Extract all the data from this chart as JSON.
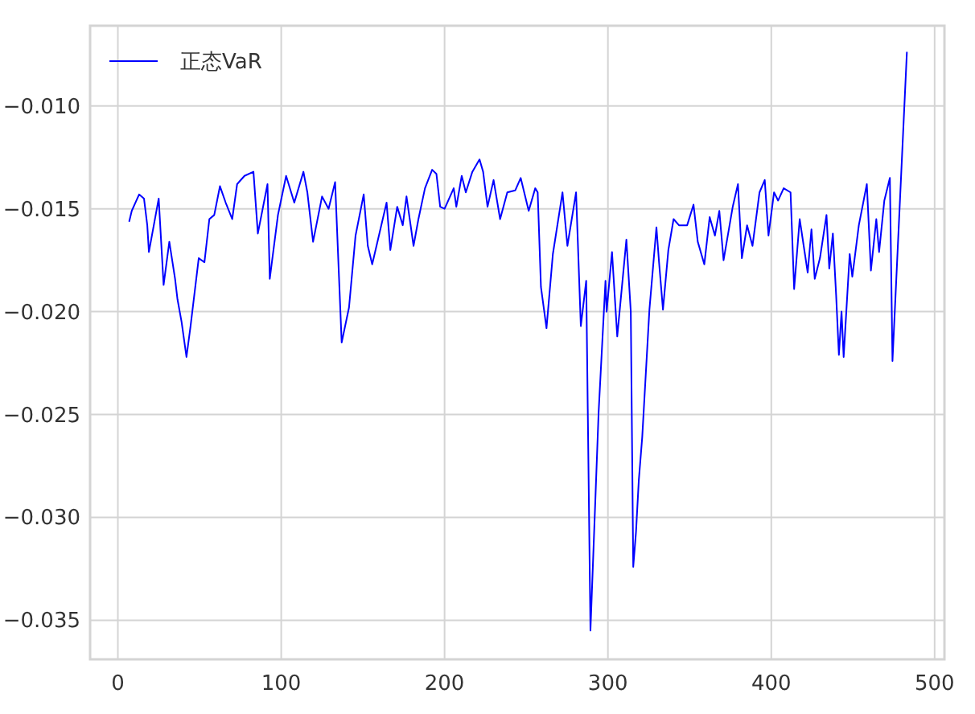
{
  "chart_data": {
    "type": "line",
    "legend": "top left",
    "grid": true,
    "marker": "none",
    "line_style": "solid",
    "xlim": [
      -17,
      506
    ],
    "ylim": [
      -0.0369,
      -0.0061
    ],
    "xticks": [
      0,
      100,
      200,
      300,
      400,
      500
    ],
    "yticks": [
      {
        "value": -0.01,
        "label": "−0.010"
      },
      {
        "value": -0.015,
        "label": "−0.015"
      },
      {
        "value": -0.02,
        "label": "−0.020"
      },
      {
        "value": -0.025,
        "label": "−0.025"
      },
      {
        "value": -0.03,
        "label": "−0.030"
      },
      {
        "value": -0.035,
        "label": "−0.035"
      }
    ],
    "series": [
      {
        "name": "正态VaR",
        "color": "#0000ff",
        "x": [
          7,
          8.5,
          13,
          16,
          18,
          19,
          25,
          28,
          31.5,
          35,
          36.5,
          39,
          42,
          44.5,
          49.5,
          53,
          56,
          59,
          62.5,
          66,
          70,
          73,
          77.5,
          83,
          85.7,
          91.6,
          93,
          98,
          103,
          108,
          113.6,
          116,
          119.5,
          125,
          129,
          133,
          137,
          141.5,
          145.5,
          150.5,
          153,
          155.7,
          164.5,
          166.8,
          171,
          174.4,
          176.7,
          181,
          184,
          188,
          192.4,
          195,
          197.3,
          200,
          205.6,
          207.2,
          210.5,
          213,
          217,
          221.4,
          223.6,
          226.3,
          230,
          234,
          238.4,
          243.3,
          246.6,
          251.5,
          255.5,
          257,
          259,
          262.4,
          266.3,
          272.2,
          275.2,
          280.5,
          283.4,
          286.7,
          289.3,
          294.3,
          298.5,
          299.2,
          302.5,
          305.7,
          311.3,
          314,
          315.5,
          317.2,
          318.9,
          321,
          325.4,
          329.7,
          331.3,
          333.7,
          337,
          340.2,
          343.5,
          348.5,
          352.4,
          355,
          359,
          362.3,
          365.5,
          368.2,
          370.8,
          376.4,
          379.6,
          382,
          385.2,
          388.5,
          392.8,
          396,
          398.3,
          401.7,
          404.2,
          407.6,
          411.8,
          414,
          417.4,
          422.3,
          424.6,
          426.6,
          429.8,
          433.8,
          435.5,
          437.7,
          439.7,
          441.4,
          443,
          444.3,
          448,
          449.6,
          453.6,
          458.5,
          461,
          464.3,
          466,
          469.2,
          472.6,
          474.2,
          483
        ],
        "values": [
          -0.0156,
          -0.0151,
          -0.0143,
          -0.0145,
          -0.0158,
          -0.0171,
          -0.0145,
          -0.0187,
          -0.0166,
          -0.0184,
          -0.0194,
          -0.0205,
          -0.0222,
          -0.0207,
          -0.0174,
          -0.0176,
          -0.0155,
          -0.0153,
          -0.0139,
          -0.0147,
          -0.0155,
          -0.0138,
          -0.0134,
          -0.0132,
          -0.0162,
          -0.0138,
          -0.0184,
          -0.0153,
          -0.0134,
          -0.0147,
          -0.0132,
          -0.0142,
          -0.0166,
          -0.0144,
          -0.015,
          -0.0137,
          -0.0215,
          -0.0198,
          -0.0163,
          -0.0143,
          -0.0168,
          -0.0177,
          -0.0147,
          -0.017,
          -0.0149,
          -0.0158,
          -0.0144,
          -0.0168,
          -0.0155,
          -0.014,
          -0.0131,
          -0.0133,
          -0.0149,
          -0.015,
          -0.014,
          -0.0149,
          -0.0134,
          -0.0142,
          -0.0132,
          -0.0126,
          -0.0132,
          -0.0149,
          -0.0136,
          -0.0155,
          -0.0142,
          -0.0141,
          -0.0135,
          -0.0151,
          -0.014,
          -0.0142,
          -0.0188,
          -0.0208,
          -0.0172,
          -0.0142,
          -0.0168,
          -0.0142,
          -0.0207,
          -0.0185,
          -0.0355,
          -0.0249,
          -0.0185,
          -0.02,
          -0.0171,
          -0.0212,
          -0.0165,
          -0.02,
          -0.0324,
          -0.0307,
          -0.0282,
          -0.0261,
          -0.0199,
          -0.0159,
          -0.0176,
          -0.0199,
          -0.017,
          -0.0155,
          -0.0158,
          -0.0158,
          -0.0148,
          -0.0166,
          -0.0177,
          -0.0154,
          -0.0163,
          -0.0151,
          -0.0175,
          -0.0149,
          -0.0138,
          -0.0174,
          -0.0158,
          -0.0168,
          -0.0142,
          -0.0136,
          -0.0163,
          -0.0142,
          -0.0146,
          -0.014,
          -0.0142,
          -0.0189,
          -0.0155,
          -0.0181,
          -0.016,
          -0.0184,
          -0.0174,
          -0.0153,
          -0.0179,
          -0.0162,
          -0.0192,
          -0.0221,
          -0.02,
          -0.0222,
          -0.0172,
          -0.0183,
          -0.0158,
          -0.0138,
          -0.018,
          -0.0155,
          -0.0171,
          -0.0146,
          -0.0135,
          -0.0224,
          -0.0074
        ]
      }
    ]
  }
}
